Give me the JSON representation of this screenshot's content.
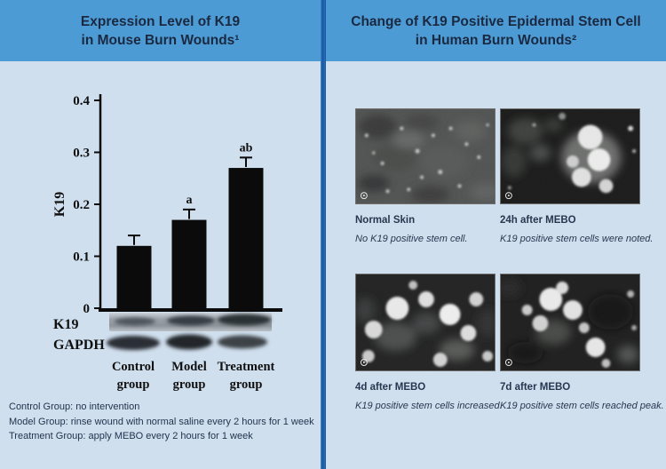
{
  "colors": {
    "header_blue": "#4d9bd5",
    "body_blue": "#d0dfee",
    "divider_blue": "#0f56a4",
    "title_text": "#1b2940",
    "bar_black": "#0b0b0b",
    "caption_text": "#273750"
  },
  "left_panel": {
    "title_line1": "Expression Level of K19",
    "title_line2": "in Mouse Burn Wounds¹",
    "blot": {
      "rows": [
        {
          "label": "K19"
        },
        {
          "label": "GAPDH"
        }
      ],
      "lanes": [
        {
          "line1": "Control",
          "line2": "group"
        },
        {
          "line1": "Model",
          "line2": "group"
        },
        {
          "line1": "Treatment",
          "line2": "group"
        }
      ]
    },
    "footnotes": [
      "Control Group: no intervention",
      "Model Group: rinse wound with normal saline every 2 hours for 1 week",
      "Treatment Group: apply MEBO every 2 hours for 1 week"
    ]
  },
  "right_panel": {
    "title_line1": "Change of K19 Positive Epidermal Stem Cell",
    "title_line2": "in Human Burn Wounds²",
    "micrographs": [
      {
        "caption": "Normal Skin",
        "description": "No K19 positive stem cell."
      },
      {
        "caption": "24h after MEBO",
        "description": "K19 positive stem cells were noted."
      },
      {
        "caption": "4d after MEBO",
        "description": "K19 positive stem cells increased."
      },
      {
        "caption": "7d after MEBO",
        "description": "K19 positive stem cells reached peak."
      }
    ]
  },
  "chart_data": {
    "type": "bar",
    "categories": [
      "Control group",
      "Model group",
      "Treatment group"
    ],
    "values": [
      0.12,
      0.17,
      0.27
    ],
    "error_bars": [
      0.02,
      0.02,
      0.02
    ],
    "significance_labels": [
      "",
      "a",
      "ab"
    ],
    "title": "",
    "xlabel": "",
    "ylabel": "K19",
    "ylim": [
      0,
      0.4
    ],
    "yticks": [
      0,
      0.1,
      0.2,
      0.3,
      0.4
    ],
    "bar_color": "#0b0b0b",
    "grid": false,
    "legend": false
  }
}
